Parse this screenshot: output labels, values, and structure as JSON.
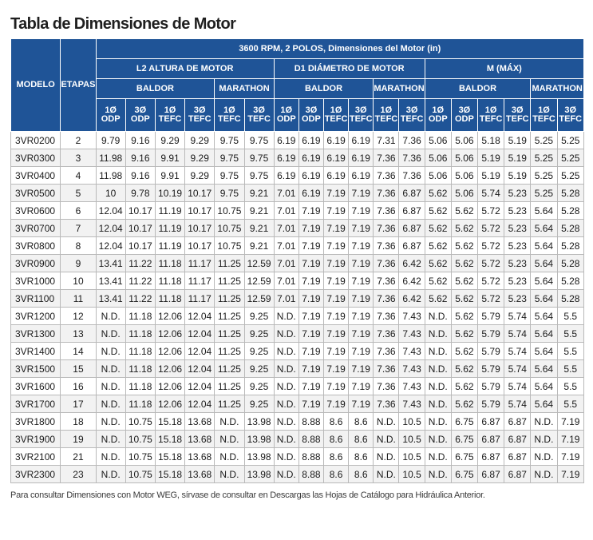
{
  "title": "Tabla de Dimensiones de Motor",
  "footnote": "Para consultar Dimensiones con Motor WEG, sírvase de consultar en Descargas las Hojas de Catálogo para Hidráulica Anterior.",
  "colors": {
    "header_bg": "#1f5497",
    "header_text": "#ffffff",
    "row_alt_bg": "#f2f2f2"
  },
  "table": {
    "header": {
      "modelo": "MODELO",
      "etapas": "ETAPAS",
      "main": "3600 RPM, 2 POLOS, Dimensiones del Motor (in)",
      "groups": [
        "L2 ALTURA DE MOTOR",
        "D1 DIÁMETRO DE MOTOR",
        "M (MÁX)"
      ],
      "brands": [
        "BALDOR",
        "MARATHON"
      ],
      "subcols": [
        [
          "1Ø",
          "ODP"
        ],
        [
          "3Ø",
          "ODP"
        ],
        [
          "1Ø",
          "TEFC"
        ],
        [
          "3Ø",
          "TEFC"
        ],
        [
          "1Ø",
          "TEFC"
        ],
        [
          "3Ø",
          "TEFC"
        ],
        [
          "1Ø",
          "ODP"
        ],
        [
          "3Ø",
          "ODP"
        ],
        [
          "1Ø",
          "TEFC"
        ],
        [
          "3Ø",
          "TEFC"
        ],
        [
          "1Ø",
          "TEFC"
        ],
        [
          "3Ø",
          "TEFC"
        ],
        [
          "1Ø",
          "ODP"
        ],
        [
          "3Ø",
          "ODP"
        ],
        [
          "1Ø",
          "TEFC"
        ],
        [
          "3Ø",
          "TEFC"
        ],
        [
          "1Ø",
          "TEFC"
        ],
        [
          "3Ø",
          "TEFC"
        ]
      ]
    },
    "rows": [
      [
        "3VR0200",
        "2",
        "9.79",
        "9.16",
        "9.29",
        "9.29",
        "9.75",
        "9.75",
        "6.19",
        "6.19",
        "6.19",
        "6.19",
        "7.31",
        "7.36",
        "5.06",
        "5.06",
        "5.18",
        "5.19",
        "5.25",
        "5.25"
      ],
      [
        "3VR0300",
        "3",
        "11.98",
        "9.16",
        "9.91",
        "9.29",
        "9.75",
        "9.75",
        "6.19",
        "6.19",
        "6.19",
        "6.19",
        "7.36",
        "7.36",
        "5.06",
        "5.06",
        "5.19",
        "5.19",
        "5.25",
        "5.25"
      ],
      [
        "3VR0400",
        "4",
        "11.98",
        "9.16",
        "9.91",
        "9.29",
        "9.75",
        "9.75",
        "6.19",
        "6.19",
        "6.19",
        "6.19",
        "7.36",
        "7.36",
        "5.06",
        "5.06",
        "5.19",
        "5.19",
        "5.25",
        "5.25"
      ],
      [
        "3VR0500",
        "5",
        "10",
        "9.78",
        "10.19",
        "10.17",
        "9.75",
        "9.21",
        "7.01",
        "6.19",
        "7.19",
        "7.19",
        "7.36",
        "6.87",
        "5.62",
        "5.06",
        "5.74",
        "5.23",
        "5.25",
        "5.28"
      ],
      [
        "3VR0600",
        "6",
        "12.04",
        "10.17",
        "11.19",
        "10.17",
        "10.75",
        "9.21",
        "7.01",
        "7.19",
        "7.19",
        "7.19",
        "7.36",
        "6.87",
        "5.62",
        "5.62",
        "5.72",
        "5.23",
        "5.64",
        "5.28"
      ],
      [
        "3VR0700",
        "7",
        "12.04",
        "10.17",
        "11.19",
        "10.17",
        "10.75",
        "9.21",
        "7.01",
        "7.19",
        "7.19",
        "7.19",
        "7.36",
        "6.87",
        "5.62",
        "5.62",
        "5.72",
        "5.23",
        "5.64",
        "5.28"
      ],
      [
        "3VR0800",
        "8",
        "12.04",
        "10.17",
        "11.19",
        "10.17",
        "10.75",
        "9.21",
        "7.01",
        "7.19",
        "7.19",
        "7.19",
        "7.36",
        "6.87",
        "5.62",
        "5.62",
        "5.72",
        "5.23",
        "5.64",
        "5.28"
      ],
      [
        "3VR0900",
        "9",
        "13.41",
        "11.22",
        "11.18",
        "11.17",
        "11.25",
        "12.59",
        "7.01",
        "7.19",
        "7.19",
        "7.19",
        "7.36",
        "6.42",
        "5.62",
        "5.62",
        "5.72",
        "5.23",
        "5.64",
        "5.28"
      ],
      [
        "3VR1000",
        "10",
        "13.41",
        "11.22",
        "11.18",
        "11.17",
        "11.25",
        "12.59",
        "7.01",
        "7.19",
        "7.19",
        "7.19",
        "7.36",
        "6.42",
        "5.62",
        "5.62",
        "5.72",
        "5.23",
        "5.64",
        "5.28"
      ],
      [
        "3VR1100",
        "11",
        "13.41",
        "11.22",
        "11.18",
        "11.17",
        "11.25",
        "12.59",
        "7.01",
        "7.19",
        "7.19",
        "7.19",
        "7.36",
        "6.42",
        "5.62",
        "5.62",
        "5.72",
        "5.23",
        "5.64",
        "5.28"
      ],
      [
        "3VR1200",
        "12",
        "N.D.",
        "11.18",
        "12.06",
        "12.04",
        "11.25",
        "9.25",
        "N.D.",
        "7.19",
        "7.19",
        "7.19",
        "7.36",
        "7.43",
        "N.D.",
        "5.62",
        "5.79",
        "5.74",
        "5.64",
        "5.5"
      ],
      [
        "3VR1300",
        "13",
        "N.D.",
        "11.18",
        "12.06",
        "12.04",
        "11.25",
        "9.25",
        "N.D.",
        "7.19",
        "7.19",
        "7.19",
        "7.36",
        "7.43",
        "N.D.",
        "5.62",
        "5.79",
        "5.74",
        "5.64",
        "5.5"
      ],
      [
        "3VR1400",
        "14",
        "N.D.",
        "11.18",
        "12.06",
        "12.04",
        "11.25",
        "9.25",
        "N.D.",
        "7.19",
        "7.19",
        "7.19",
        "7.36",
        "7.43",
        "N.D.",
        "5.62",
        "5.79",
        "5.74",
        "5.64",
        "5.5"
      ],
      [
        "3VR1500",
        "15",
        "N.D.",
        "11.18",
        "12.06",
        "12.04",
        "11.25",
        "9.25",
        "N.D.",
        "7.19",
        "7.19",
        "7.19",
        "7.36",
        "7.43",
        "N.D.",
        "5.62",
        "5.79",
        "5.74",
        "5.64",
        "5.5"
      ],
      [
        "3VR1600",
        "16",
        "N.D.",
        "11.18",
        "12.06",
        "12.04",
        "11.25",
        "9.25",
        "N.D.",
        "7.19",
        "7.19",
        "7.19",
        "7.36",
        "7.43",
        "N.D.",
        "5.62",
        "5.79",
        "5.74",
        "5.64",
        "5.5"
      ],
      [
        "3VR1700",
        "17",
        "N.D.",
        "11.18",
        "12.06",
        "12.04",
        "11.25",
        "9.25",
        "N.D.",
        "7.19",
        "7.19",
        "7.19",
        "7.36",
        "7.43",
        "N.D.",
        "5.62",
        "5.79",
        "5.74",
        "5.64",
        "5.5"
      ],
      [
        "3VR1800",
        "18",
        "N.D.",
        "10.75",
        "15.18",
        "13.68",
        "N.D.",
        "13.98",
        "N.D.",
        "8.88",
        "8.6",
        "8.6",
        "N.D.",
        "10.5",
        "N.D.",
        "6.75",
        "6.87",
        "6.87",
        "N.D.",
        "7.19"
      ],
      [
        "3VR1900",
        "19",
        "N.D.",
        "10.75",
        "15.18",
        "13.68",
        "N.D.",
        "13.98",
        "N.D.",
        "8.88",
        "8.6",
        "8.6",
        "N.D.",
        "10.5",
        "N.D.",
        "6.75",
        "6.87",
        "6.87",
        "N.D.",
        "7.19"
      ],
      [
        "3VR2100",
        "21",
        "N.D.",
        "10.75",
        "15.18",
        "13.68",
        "N.D.",
        "13.98",
        "N.D.",
        "8.88",
        "8.6",
        "8.6",
        "N.D.",
        "10.5",
        "N.D.",
        "6.75",
        "6.87",
        "6.87",
        "N.D.",
        "7.19"
      ],
      [
        "3VR2300",
        "23",
        "N.D.",
        "10.75",
        "15.18",
        "13.68",
        "N.D.",
        "13.98",
        "N.D.",
        "8.88",
        "8.6",
        "8.6",
        "N.D.",
        "10.5",
        "N.D.",
        "6.75",
        "6.87",
        "6.87",
        "N.D.",
        "7.19"
      ]
    ]
  }
}
